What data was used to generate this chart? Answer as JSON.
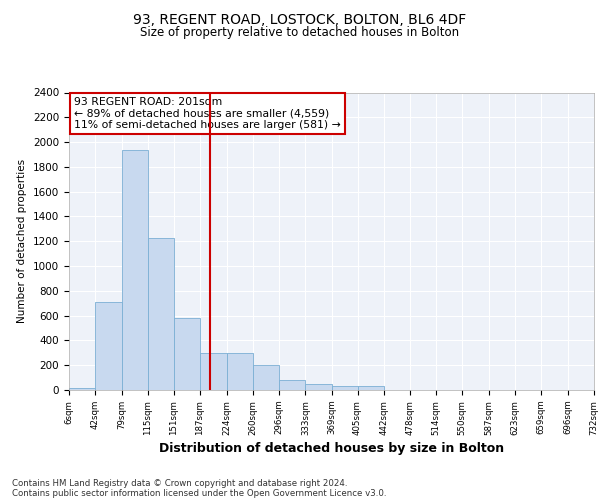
{
  "title1": "93, REGENT ROAD, LOSTOCK, BOLTON, BL6 4DF",
  "title2": "Size of property relative to detached houses in Bolton",
  "xlabel": "Distribution of detached houses by size in Bolton",
  "ylabel": "Number of detached properties",
  "annotation_line1": "93 REGENT ROAD: 201sqm",
  "annotation_line2": "← 89% of detached houses are smaller (4,559)",
  "annotation_line3": "11% of semi-detached houses are larger (581) →",
  "vline_x": 201,
  "bar_color": "#c8d9ef",
  "bar_edge_color": "#7bafd4",
  "vline_color": "#cc0000",
  "background_color": "#eef2f9",
  "annotation_box_color": "#ffffff",
  "annotation_box_edge": "#cc0000",
  "footer_line1": "Contains HM Land Registry data © Crown copyright and database right 2024.",
  "footer_line2": "Contains public sector information licensed under the Open Government Licence v3.0.",
  "bin_edges": [
    6,
    42,
    79,
    115,
    151,
    187,
    224,
    260,
    296,
    333,
    369,
    405,
    442,
    478,
    514,
    550,
    587,
    623,
    659,
    696,
    732
  ],
  "bin_labels": [
    "6sqm",
    "42sqm",
    "79sqm",
    "115sqm",
    "151sqm",
    "187sqm",
    "224sqm",
    "260sqm",
    "296sqm",
    "333sqm",
    "369sqm",
    "405sqm",
    "442sqm",
    "478sqm",
    "514sqm",
    "550sqm",
    "587sqm",
    "623sqm",
    "659sqm",
    "696sqm",
    "732sqm"
  ],
  "bar_heights": [
    20,
    710,
    1940,
    1230,
    580,
    300,
    300,
    200,
    80,
    45,
    35,
    35,
    0,
    0,
    0,
    0,
    0,
    0,
    0,
    0
  ],
  "ylim": [
    0,
    2400
  ],
  "yticks": [
    0,
    200,
    400,
    600,
    800,
    1000,
    1200,
    1400,
    1600,
    1800,
    2000,
    2200,
    2400
  ]
}
